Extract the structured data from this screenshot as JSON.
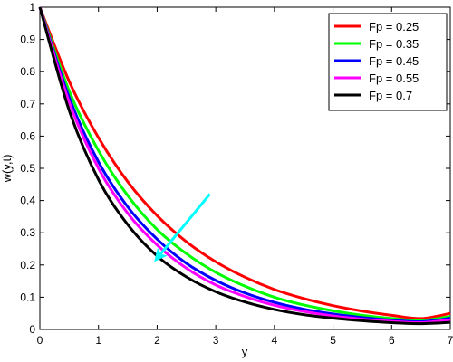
{
  "chart_data": {
    "type": "line",
    "xlabel": "y",
    "ylabel": "w(y,t)",
    "xlim": [
      0,
      7
    ],
    "ylim": [
      0,
      1
    ],
    "x_ticks": [
      "0",
      "1",
      "2",
      "3",
      "4",
      "5",
      "6",
      "7"
    ],
    "y_ticks": [
      "0",
      "0.1",
      "0.2",
      "0.3",
      "0.4",
      "0.5",
      "0.6",
      "0.7",
      "0.8",
      "0.9",
      "1"
    ],
    "grid": false,
    "legend_position": "top-right",
    "x": [
      0,
      0.5,
      1,
      1.5,
      2,
      2.5,
      3,
      3.5,
      4,
      4.5,
      5,
      5.5,
      6,
      6.5,
      7
    ],
    "series": [
      {
        "name": "Fp = 0.25",
        "color": "#ff0000",
        "values": [
          1,
          0.77,
          0.595,
          0.458,
          0.353,
          0.272,
          0.21,
          0.162,
          0.124,
          0.096,
          0.074,
          0.057,
          0.044,
          0.034,
          0.05
        ]
      },
      {
        "name": "Fp = 0.35",
        "color": "#00ff00",
        "values": [
          1,
          0.74,
          0.555,
          0.415,
          0.31,
          0.235,
          0.177,
          0.134,
          0.1,
          0.076,
          0.058,
          0.044,
          0.034,
          0.028,
          0.04
        ]
      },
      {
        "name": "Fp = 0.45",
        "color": "#0000ff",
        "values": [
          1,
          0.72,
          0.52,
          0.38,
          0.28,
          0.205,
          0.152,
          0.113,
          0.084,
          0.063,
          0.048,
          0.037,
          0.029,
          0.024,
          0.035
        ]
      },
      {
        "name": "Fp = 0.55",
        "color": "#ff00ff",
        "values": [
          1,
          0.705,
          0.5,
          0.36,
          0.262,
          0.19,
          0.138,
          0.102,
          0.075,
          0.056,
          0.042,
          0.032,
          0.025,
          0.021,
          0.03
        ]
      },
      {
        "name": "Fp = 0.7",
        "color": "#000000",
        "values": [
          1,
          0.68,
          0.465,
          0.325,
          0.228,
          0.163,
          0.117,
          0.085,
          0.062,
          0.046,
          0.035,
          0.027,
          0.021,
          0.018,
          0.022
        ]
      }
    ],
    "annotation": {
      "type": "arrow",
      "color": "#00ffff",
      "from": [
        2.9,
        0.42
      ],
      "to": [
        1.95,
        0.21
      ]
    }
  }
}
